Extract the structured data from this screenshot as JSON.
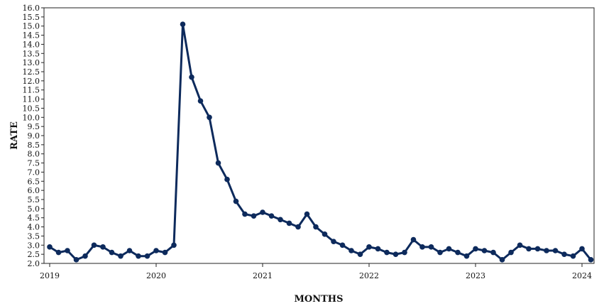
{
  "colors": {
    "series": "#0d2a5c",
    "axis": "#222222",
    "background": "#ffffff"
  },
  "chart_data": {
    "type": "line",
    "title": "",
    "xlabel": "MONTHS",
    "ylabel": "RATE",
    "ylim": [
      2.0,
      16.0
    ],
    "xlim": [
      "2019-01",
      "2024-02"
    ],
    "y_ticks": [
      "2.0",
      "2.5",
      "3.0",
      "3.5",
      "4.0",
      "4.5",
      "5.0",
      "5.5",
      "6.0",
      "6.5",
      "7.0",
      "7.5",
      "8.0",
      "8.5",
      "9.0",
      "9.5",
      "10.0",
      "10.5",
      "11.0",
      "11.5",
      "12.0",
      "12.5",
      "13.0",
      "13.5",
      "14.0",
      "14.5",
      "15.0",
      "15.5",
      "16.0"
    ],
    "x_tick_labels": [
      "2019",
      "2020",
      "2021",
      "2022",
      "2023",
      "2024"
    ],
    "grid": false,
    "legend": "none",
    "x": [
      "2019-01",
      "2019-02",
      "2019-03",
      "2019-04",
      "2019-05",
      "2019-06",
      "2019-07",
      "2019-08",
      "2019-09",
      "2019-10",
      "2019-11",
      "2019-12",
      "2020-01",
      "2020-02",
      "2020-03",
      "2020-04",
      "2020-05",
      "2020-06",
      "2020-07",
      "2020-08",
      "2020-09",
      "2020-10",
      "2020-11",
      "2020-12",
      "2021-01",
      "2021-02",
      "2021-03",
      "2021-04",
      "2021-05",
      "2021-06",
      "2021-07",
      "2021-08",
      "2021-09",
      "2021-10",
      "2021-11",
      "2021-12",
      "2022-01",
      "2022-02",
      "2022-03",
      "2022-04",
      "2022-05",
      "2022-06",
      "2022-07",
      "2022-08",
      "2022-09",
      "2022-10",
      "2022-11",
      "2022-12",
      "2023-01",
      "2023-02",
      "2023-03",
      "2023-04",
      "2023-05",
      "2023-06",
      "2023-07",
      "2023-08",
      "2023-09",
      "2023-10",
      "2023-11",
      "2023-12",
      "2024-01",
      "2024-02"
    ],
    "values": [
      2.9,
      2.6,
      2.7,
      2.2,
      2.4,
      3.0,
      2.9,
      2.6,
      2.4,
      2.7,
      2.4,
      2.4,
      2.7,
      2.6,
      3.0,
      15.1,
      12.2,
      10.9,
      10.0,
      7.5,
      6.6,
      5.4,
      4.7,
      4.6,
      4.8,
      4.6,
      4.4,
      4.2,
      4.0,
      4.7,
      4.0,
      3.6,
      3.2,
      3.0,
      2.7,
      2.5,
      2.9,
      2.8,
      2.6,
      2.5,
      2.6,
      3.3,
      2.9,
      2.9,
      2.6,
      2.8,
      2.6,
      2.4,
      2.8,
      2.7,
      2.6,
      2.2,
      2.6,
      3.0,
      2.8,
      2.8,
      2.7,
      2.7,
      2.5,
      2.4,
      2.8,
      2.2
    ]
  }
}
